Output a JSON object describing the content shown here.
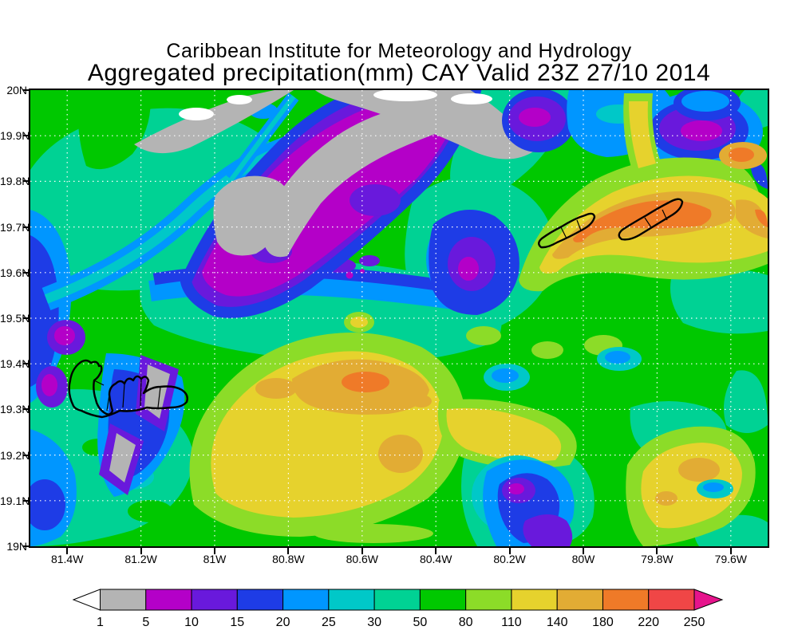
{
  "header": {
    "title": "Caribbean Institute for Meteorology and Hydrology",
    "subtitle": "Aggregated precipitation(mm) CAY Valid 23Z 27/10 2014"
  },
  "chart_data": {
    "type": "heatmap",
    "title": "Caribbean Institute for Meteorology and Hydrology",
    "subtitle": "Aggregated precipitation(mm) CAY Valid 23Z 27/10 2014",
    "variable": "Aggregated precipitation (mm)",
    "domain_code": "CAY",
    "valid_time": "23Z 27/10 2014",
    "grid": true,
    "legend_position": "bottom",
    "x_axis": {
      "ticks": [
        "81.4W",
        "81.2W",
        "81W",
        "80.8W",
        "80.6W",
        "80.4W",
        "80.2W",
        "80W",
        "79.8W",
        "79.6W"
      ],
      "values": [
        81.4,
        81.2,
        81.0,
        80.8,
        80.6,
        80.4,
        80.2,
        80.0,
        79.8,
        79.6
      ],
      "range_deg_west": [
        81.5,
        79.5
      ]
    },
    "y_axis": {
      "ticks": [
        "20N",
        "19.9N",
        "19.8N",
        "19.7N",
        "19.6N",
        "19.5N",
        "19.4N",
        "19.3N",
        "19.2N",
        "19.1N",
        "19N"
      ],
      "values": [
        20.0,
        19.9,
        19.8,
        19.7,
        19.6,
        19.5,
        19.4,
        19.3,
        19.2,
        19.1,
        19.0
      ],
      "range_deg_north": [
        19.0,
        20.0
      ]
    },
    "colorbar": {
      "labels": [
        "1",
        "5",
        "10",
        "15",
        "20",
        "25",
        "30",
        "50",
        "80",
        "110",
        "140",
        "180",
        "220",
        "250"
      ],
      "levels": [
        1,
        5,
        10,
        15,
        20,
        25,
        30,
        50,
        80,
        110,
        140,
        180,
        220,
        250
      ],
      "colors": [
        "#b4b4b4",
        "#b400c8",
        "#6919dc",
        "#1e3ce6",
        "#0096ff",
        "#00c8c8",
        "#00d294",
        "#00c800",
        "#8cdc28",
        "#e6d22d",
        "#e2ac34",
        "#ef7a28",
        "#f04646"
      ],
      "below_min_color": "#ffffff",
      "above_max_color": "#e6148c"
    },
    "islands_outlined": [
      "Grand Cayman",
      "Little Cayman",
      "Cayman Brac"
    ],
    "features": [
      {
        "name": "precip-maximum-sister-islands",
        "approx_value_mm": "180-220",
        "location": "around Little Cayman and Cayman Brac (~19.7N, 79.8-80W)"
      },
      {
        "name": "precip-maximum-central-south",
        "approx_value_mm": "140-220",
        "location": "~80.6-80.8W, 19.3-19.45N"
      },
      {
        "name": "precip-minimum-northwest-band",
        "approx_value_mm": "1-5",
        "location": "diagonal gray/purple band across NW quadrant"
      }
    ]
  }
}
